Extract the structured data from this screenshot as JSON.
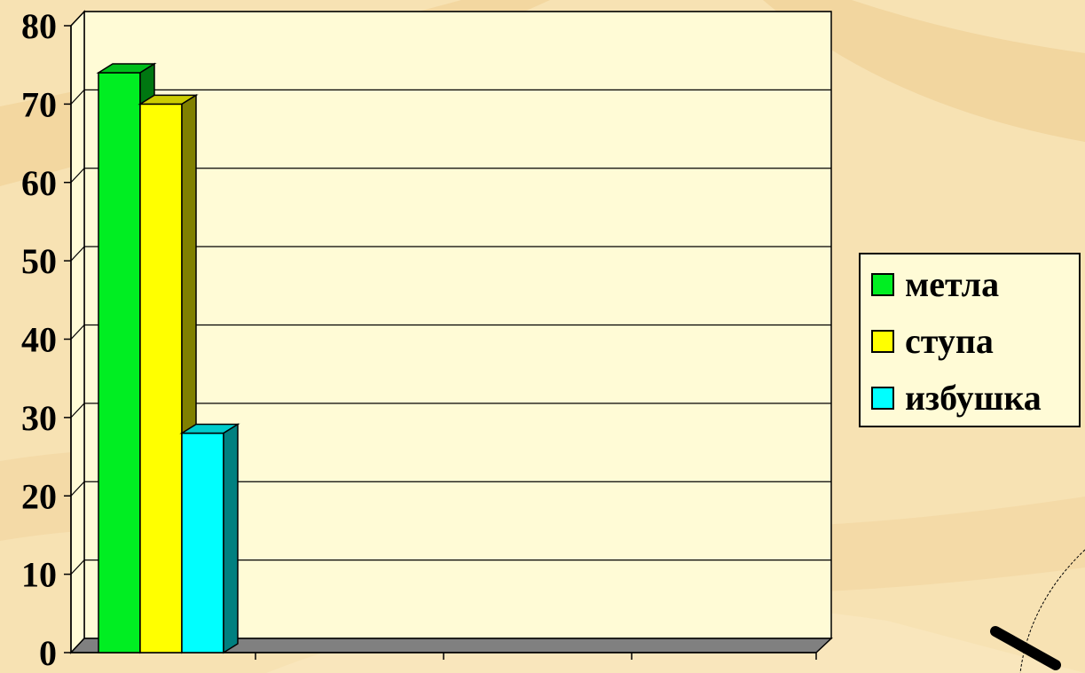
{
  "chart_data": {
    "type": "bar",
    "categories": [
      ""
    ],
    "series": [
      {
        "name": "метла",
        "values": [
          74
        ],
        "color": "#00ee22"
      },
      {
        "name": "ступа",
        "values": [
          70
        ],
        "color": "#ffff00"
      },
      {
        "name": "избушка",
        "values": [
          28
        ],
        "color": "#00ffff"
      }
    ],
    "ylim": [
      0,
      80
    ],
    "yticks": [
      0,
      10,
      20,
      30,
      40,
      50,
      60,
      70,
      80
    ],
    "ytick_labels": [
      "0",
      "10",
      "20",
      "30",
      "40",
      "50",
      "60",
      "70",
      "80"
    ],
    "grid": true,
    "legend": "right",
    "three_d": true,
    "colors": {
      "wall": "#fffbd6",
      "floor": "#808080",
      "background": "#f7e2b3"
    }
  }
}
